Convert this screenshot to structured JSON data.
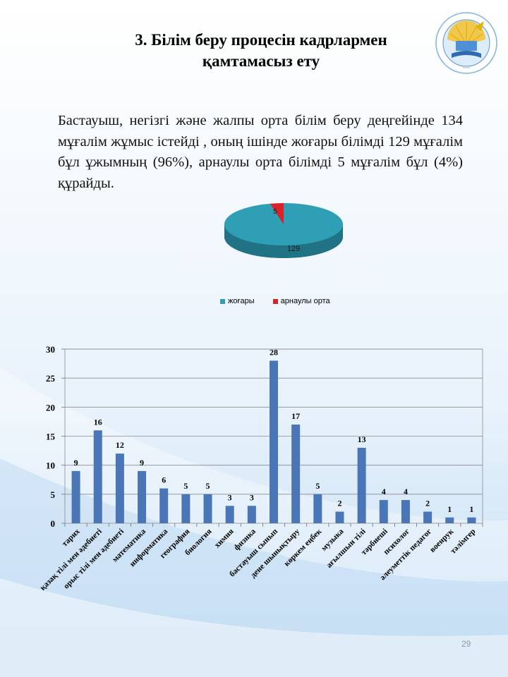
{
  "slide": {
    "title_line1": "3. Білім беру процесін кадрлармен",
    "title_line2": "қамтамасыз ету",
    "paragraph": "Бастауыш, негізгі және жалпы орта білім беру деңгейінде 134 мұғалім жұмыс істейді , оның ішінде жоғары білімді 129 мұғалім бұл ұжымның (96%), арнаулы орта білімді 5 мұғалім бұл (4%) құрайды.",
    "page_number": "29",
    "logo_icon": "school-emblem-icon"
  },
  "colors": {
    "pie_main": "#2e9fb5",
    "pie_red": "#d8232a",
    "bar": "#4a76b8",
    "title": "#000000"
  },
  "chart_data": [
    {
      "type": "pie",
      "categories": [
        "жоғары",
        "арнаулы орта"
      ],
      "values": [
        129,
        5
      ],
      "data_labels": [
        "129",
        "5"
      ],
      "legend_position": "bottom",
      "style": "3d"
    },
    {
      "type": "bar",
      "categories": [
        "тарих",
        "қазақ тілі мен әдебиеті",
        "орыс тілі мен әдебиеті",
        "математика",
        "информатика",
        "география",
        "биология",
        "химия",
        "физика",
        "бастауыш сынып",
        "дене шынықтыру",
        "көркем еңбек",
        "музыка",
        "ағылшын тілі",
        "тәрбиеші",
        "психолог",
        "әлеуметтік педагог",
        "военрук",
        "тәлімгер"
      ],
      "values": [
        9,
        16,
        12,
        9,
        6,
        5,
        5,
        3,
        3,
        28,
        17,
        5,
        2,
        13,
        4,
        4,
        2,
        1,
        1
      ],
      "ylim": [
        0,
        30
      ],
      "yticks": [
        "0",
        "5",
        "10",
        "15",
        "20",
        "25",
        "30"
      ],
      "grid": true,
      "data_labels": true
    }
  ]
}
